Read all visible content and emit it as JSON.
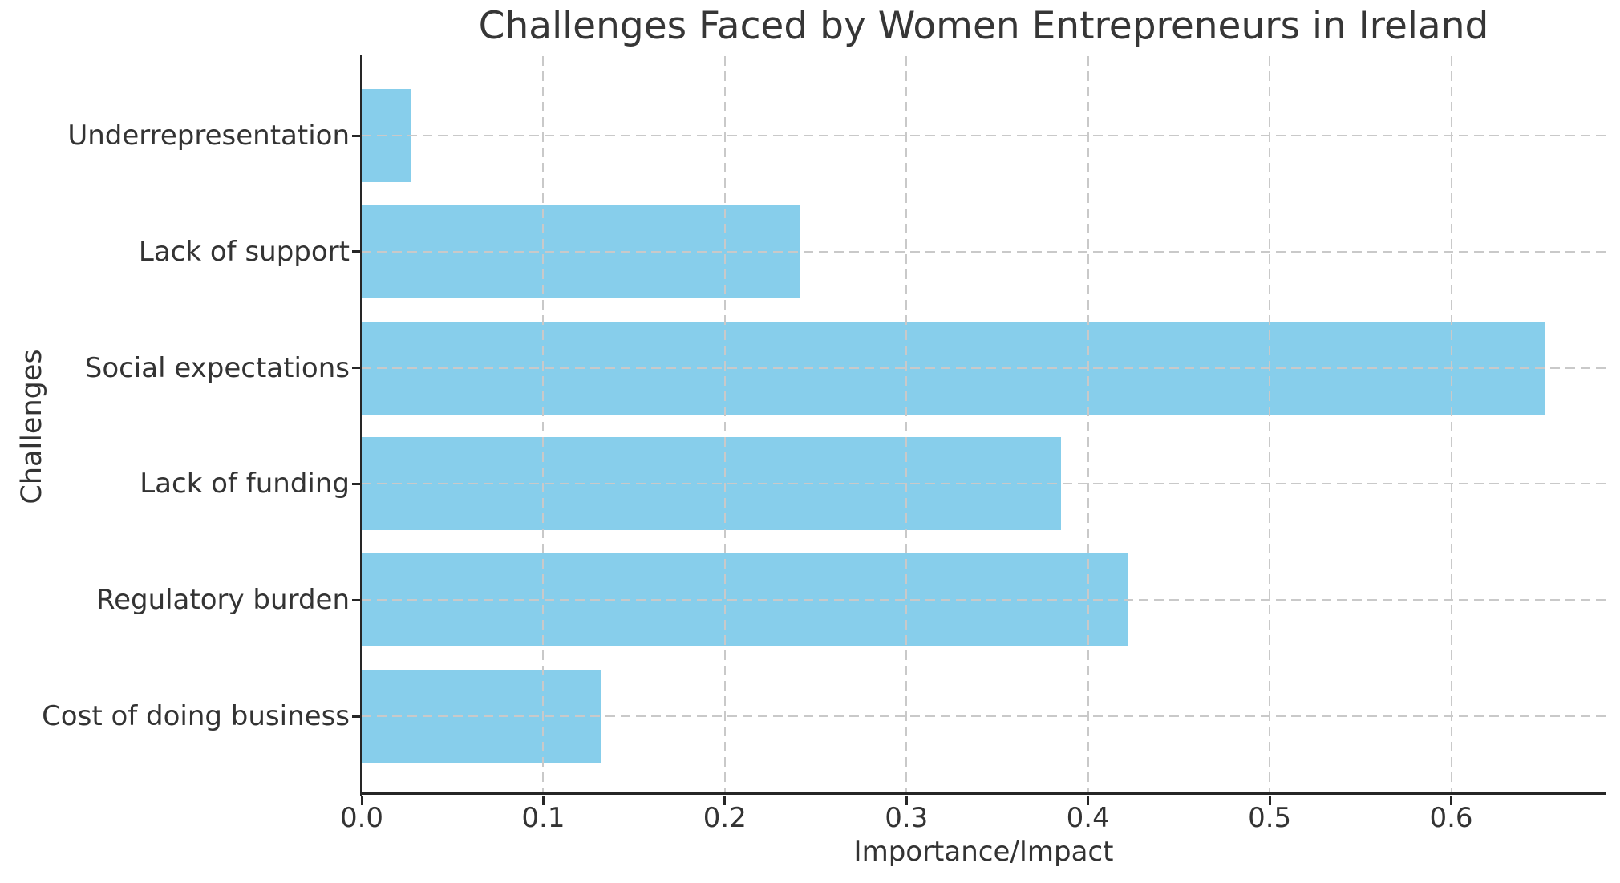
{
  "chart_data": {
    "type": "bar",
    "orientation": "horizontal",
    "title": "Challenges Faced by Women Entrepreneurs in Ireland",
    "xlabel": "Importance/Impact",
    "ylabel": "Challenges",
    "categories": [
      "Underrepresentation",
      "Lack of support",
      "Social expectations",
      "Lack of funding",
      "Regulatory burden",
      "Cost of doing business"
    ],
    "values": [
      0.027,
      0.241,
      0.652,
      0.385,
      0.422,
      0.132
    ],
    "xlim": [
      0,
      0.685
    ],
    "xticks": [
      0,
      0.1,
      0.2,
      0.3,
      0.4,
      0.5,
      0.6
    ],
    "xtick_labels": [
      "0.0",
      "0.1",
      "0.2",
      "0.3",
      "0.4",
      "0.5",
      "0.6"
    ],
    "grid": {
      "axis": "both",
      "style": "dashed",
      "drawn_above_bars": true
    },
    "colors": {
      "bar": "#87CEEB",
      "grid": "#c9c9c9",
      "spine": "#262626",
      "text": "#333333",
      "background": "#ffffff"
    }
  }
}
